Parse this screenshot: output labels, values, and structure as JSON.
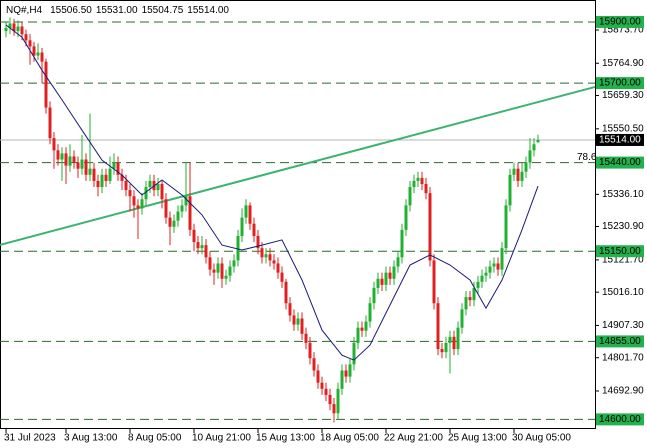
{
  "chart_data": {
    "type": "candlestick",
    "title": "NQ#,H4",
    "ohlc_labels": [
      "15506.50",
      "15531.00",
      "15504.75",
      "15514.00"
    ],
    "up_color": "#22b030",
    "down_color": "#e02020",
    "open": [
      15870,
      15880,
      15895,
      15870,
      15885,
      15860,
      15840,
      15820,
      15790,
      15800,
      15770,
      15620,
      15520,
      15480,
      15450,
      15470,
      15430,
      15460,
      15440,
      15420,
      15450,
      15400,
      15420,
      15380,
      15360,
      15400,
      15380,
      15420,
      15440,
      15400,
      15380,
      15350,
      15330,
      15300,
      15290,
      15320,
      15360,
      15380,
      15350,
      15370,
      15320,
      15260,
      15230,
      15250,
      15280,
      15300,
      15330,
      15220,
      15180,
      15160,
      15170,
      15130,
      15090,
      15080,
      15110,
      15060,
      15070,
      15100,
      15120,
      15200,
      15260,
      15300,
      15240,
      15200,
      15160,
      15130,
      15140,
      15120,
      15110,
      15080,
      15050,
      14980,
      14940,
      14910,
      14930,
      14880,
      14850,
      14800,
      14760,
      14720,
      14700,
      14680,
      14650,
      14620,
      14700,
      14760,
      14740,
      14780,
      14850,
      14900,
      14890,
      14920,
      14980,
      15030,
      15060,
      15040,
      15080,
      15060,
      15100,
      15130,
      15220,
      15300,
      15360,
      15380,
      15390,
      15370,
      15340,
      15120,
      14980,
      14830,
      14820,
      14850,
      14870,
      14830,
      14900,
      14960,
      15000,
      14990,
      15030,
      15050,
      15070,
      15080,
      15100,
      15110,
      15090,
      15160,
      15300,
      15400,
      15420,
      15380,
      15410,
      15440,
      15480,
      15506.5
    ],
    "high": [
      15900,
      15915,
      15910,
      15905,
      15900,
      15875,
      15860,
      15835,
      15830,
      15815,
      15780,
      15640,
      15540,
      15500,
      15490,
      15490,
      15500,
      15480,
      15460,
      15530,
      15470,
      15600,
      15440,
      15400,
      15420,
      15420,
      15460,
      15470,
      15460,
      15420,
      15400,
      15370,
      15350,
      15320,
      15340,
      15380,
      15400,
      15400,
      15390,
      15380,
      15340,
      15280,
      15270,
      15300,
      15320,
      15440,
      15440,
      15240,
      15200,
      15200,
      15190,
      15150,
      15110,
      15130,
      15130,
      15090,
      15120,
      15140,
      15220,
      15290,
      15320,
      15310,
      15260,
      15220,
      15180,
      15160,
      15160,
      15140,
      15130,
      15100,
      15060,
      15000,
      14960,
      14950,
      14950,
      14900,
      14870,
      14820,
      14780,
      14740,
      14720,
      14700,
      14670,
      14720,
      14780,
      14780,
      14800,
      14870,
      14920,
      14920,
      14940,
      15000,
      15050,
      15080,
      15080,
      15100,
      15100,
      15120,
      15150,
      15240,
      15320,
      15380,
      15400,
      15410,
      15410,
      15390,
      15360,
      15140,
      15000,
      14850,
      14870,
      14890,
      14890,
      14920,
      14980,
      15020,
      15020,
      15050,
      15070,
      15090,
      15100,
      15120,
      15130,
      15130,
      15180,
      15320,
      15420,
      15440,
      15440,
      15440,
      15460,
      15520,
      15520,
      15531
    ],
    "low": [
      15850,
      15860,
      15855,
      15850,
      15840,
      15820,
      15760,
      15770,
      15775,
      15700,
      15600,
      15500,
      15420,
      15430,
      15380,
      15370,
      15410,
      15420,
      15390,
      15400,
      15380,
      15380,
      15360,
      15330,
      15340,
      15360,
      15370,
      15400,
      15380,
      15350,
      15330,
      15280,
      15260,
      15190,
      15270,
      15300,
      15340,
      15330,
      15330,
      15290,
      15240,
      15170,
      15210,
      15230,
      15260,
      15280,
      15200,
      15150,
      15140,
      15140,
      15110,
      15070,
      15040,
      15060,
      15030,
      15040,
      15050,
      15080,
      15100,
      15180,
      15240,
      15220,
      15180,
      15140,
      15110,
      15110,
      15100,
      15090,
      15060,
      15030,
      14960,
      14920,
      14890,
      14890,
      14860,
      14830,
      14780,
      14740,
      14700,
      14680,
      14660,
      14630,
      14590,
      14600,
      14680,
      14720,
      14720,
      14760,
      14830,
      14870,
      14870,
      14900,
      14960,
      15010,
      15020,
      15020,
      15040,
      15040,
      15080,
      15110,
      15200,
      15280,
      15340,
      15360,
      15350,
      15320,
      15100,
      14960,
      14810,
      14800,
      14800,
      14750,
      14810,
      14810,
      14880,
      14940,
      14970,
      14970,
      15010,
      15030,
      15050,
      15060,
      15080,
      15070,
      15070,
      15140,
      15280,
      15380,
      15360,
      15360,
      15390,
      15420,
      15460,
      15504.75
    ],
    "close": [
      15880,
      15895,
      15870,
      15885,
      15860,
      15840,
      15820,
      15790,
      15800,
      15770,
      15620,
      15520,
      15480,
      15450,
      15470,
      15430,
      15460,
      15440,
      15420,
      15450,
      15400,
      15420,
      15380,
      15360,
      15400,
      15380,
      15420,
      15440,
      15400,
      15380,
      15350,
      15330,
      15300,
      15290,
      15320,
      15360,
      15380,
      15350,
      15370,
      15320,
      15260,
      15230,
      15250,
      15280,
      15300,
      15330,
      15220,
      15180,
      15160,
      15170,
      15130,
      15090,
      15080,
      15110,
      15060,
      15070,
      15100,
      15120,
      15200,
      15260,
      15300,
      15240,
      15200,
      15160,
      15130,
      15140,
      15120,
      15110,
      15080,
      15050,
      14980,
      14940,
      14910,
      14930,
      14880,
      14850,
      14800,
      14760,
      14720,
      14700,
      14680,
      14650,
      14620,
      14700,
      14760,
      14740,
      14780,
      14850,
      14900,
      14890,
      14920,
      14980,
      15030,
      15060,
      15040,
      15080,
      15060,
      15100,
      15130,
      15220,
      15300,
      15360,
      15380,
      15390,
      15370,
      15340,
      15120,
      14980,
      14830,
      14820,
      14850,
      14870,
      14830,
      14900,
      14960,
      15000,
      14990,
      15030,
      15050,
      15070,
      15080,
      15100,
      15110,
      15090,
      15160,
      15300,
      15400,
      15420,
      15380,
      15410,
      15440,
      15480,
      15500,
      15514
    ],
    "xlim": [
      -1.5,
      147.25
    ],
    "xticks": [
      {
        "value": 0,
        "label": "31 Jul 2023"
      },
      {
        "value": 15,
        "label": "3 Aug 13:00"
      },
      {
        "value": 31,
        "label": "8 Aug 05:00"
      },
      {
        "value": 47,
        "label": "10 Aug 21:00"
      },
      {
        "value": 63,
        "label": "15 Aug 13:00"
      },
      {
        "value": 79,
        "label": "18 Aug 05:00"
      },
      {
        "value": 95,
        "label": "22 Aug 21:00"
      },
      {
        "value": 111,
        "label": "25 Aug 13:00"
      },
      {
        "value": 127,
        "label": "30 Aug 05:00"
      }
    ],
    "ylim": [
      14571.8,
      15971.8
    ],
    "yticks": [
      {
        "value": 15873.7,
        "label": "15873.70"
      },
      {
        "value": 15764.9,
        "label": "15764.90"
      },
      {
        "value": 15659.3,
        "label": "15659.30"
      },
      {
        "value": 15550.5,
        "label": "15550.50"
      },
      {
        "value": 15336.1,
        "label": "15336.10"
      },
      {
        "value": 15230.9,
        "label": "15230.90"
      },
      {
        "value": 15121.7,
        "label": "15121.70"
      },
      {
        "value": 15016.1,
        "label": "15016.10"
      },
      {
        "value": 14907.3,
        "label": "14907.30"
      },
      {
        "value": 14801.7,
        "label": "14801.70"
      },
      {
        "value": 14692.9,
        "label": "14692.90"
      }
    ],
    "moving_average": {
      "color": "#1a1a7a",
      "x": [
        0,
        4,
        9,
        14,
        19,
        24,
        29,
        34,
        39,
        44,
        49,
        54,
        59,
        64,
        69,
        74,
        79,
        84,
        87,
        91,
        96,
        101,
        106,
        111,
        116,
        120,
        124,
        129,
        133
      ],
      "values": [
        15890,
        15850,
        15742,
        15645,
        15546,
        15448,
        15399,
        15334,
        15383,
        15334,
        15269,
        15170,
        15154,
        15170,
        15187,
        15056,
        14892,
        14810,
        14794,
        14843,
        14974,
        15105,
        15138,
        15105,
        15056,
        14964,
        15056,
        15220,
        15363
      ]
    },
    "trendline": {
      "color": "#3cb371",
      "x": [
        0,
        133
      ],
      "values": [
        15176,
        15638
      ]
    },
    "level_color": "#2a6a2a",
    "level_box_color": "#22b14c",
    "levels": [
      {
        "value": 15900,
        "label": "15900.00"
      },
      {
        "value": 15700,
        "label": "15700.00"
      },
      {
        "value": 15440,
        "label": "15440.00"
      },
      {
        "value": 15150,
        "label": "15150.00"
      },
      {
        "value": 14855,
        "label": "14855.00"
      },
      {
        "value": 14600,
        "label": "14600.00"
      }
    ],
    "price_line": {
      "value": 15514,
      "label": "15514.00"
    },
    "annotation": "78.6"
  }
}
